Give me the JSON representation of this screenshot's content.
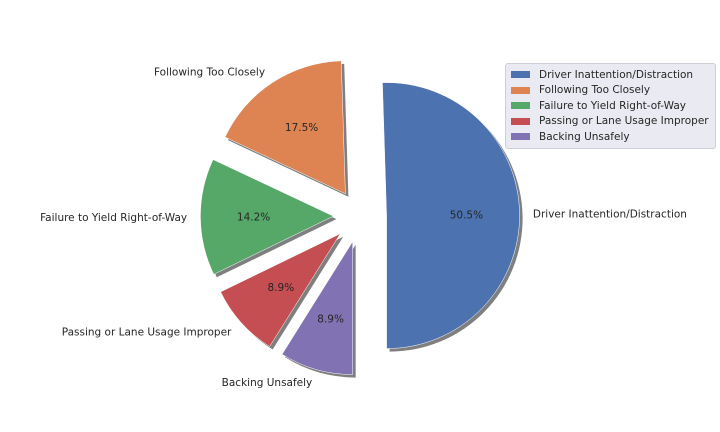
{
  "chart_data": {
    "type": "pie",
    "title": "",
    "slices": [
      {
        "label": "Driver Inattention/Distraction",
        "value": 50.5,
        "pct_label": "50.5%",
        "color": "#4c72b0"
      },
      {
        "label": "Following Too Closely",
        "value": 17.5,
        "pct_label": "17.5%",
        "color": "#dd8452"
      },
      {
        "label": "Failure to Yield Right-of-Way",
        "value": 14.2,
        "pct_label": "14.2%",
        "color": "#55a868"
      },
      {
        "label": "Passing or Lane Usage Improper",
        "value": 8.9,
        "pct_label": "8.9%",
        "color": "#c44e52"
      },
      {
        "label": "Backing Unsafely",
        "value": 8.9,
        "pct_label": "8.9%",
        "color": "#8172b3"
      }
    ],
    "exploded": true,
    "shadow": true,
    "legend_position": "top-right"
  }
}
